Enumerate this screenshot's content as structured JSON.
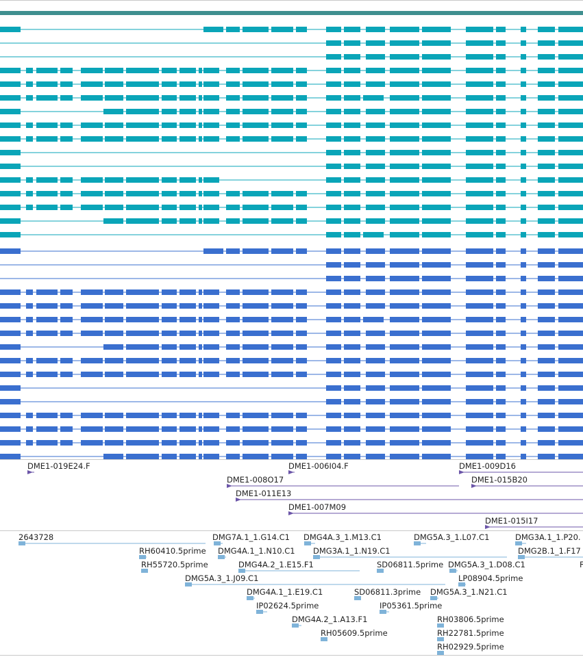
{
  "colors": {
    "teal": "#0aa5b8",
    "blue": "#3a6fcf",
    "purple": "#6b55a8",
    "lightblue": "#7fb3d9",
    "header": "#3f8f8f"
  },
  "tracks": {
    "transcripts": {
      "name": "gene-models",
      "teal_rows": 16,
      "blue_rows": 16
    },
    "clones": {
      "name": "cdna-clones",
      "items": [
        {
          "id": "c1",
          "label": "DME1-019E24.F"
        },
        {
          "id": "c2",
          "label": "DME1-006I04.F"
        },
        {
          "id": "c3",
          "label": "DME1-009D16"
        },
        {
          "id": "c4",
          "label": "DME1-008O17"
        },
        {
          "id": "c5",
          "label": "DME1-015B20"
        },
        {
          "id": "c6",
          "label": "DME1-011E13"
        },
        {
          "id": "c7",
          "label": "DME1-007M09"
        },
        {
          "id": "c8",
          "label": "DME1-015I17"
        }
      ]
    },
    "ests": {
      "name": "est-alignments",
      "items": [
        {
          "id": "e1",
          "label": "2643728"
        },
        {
          "id": "e2",
          "label": "DMG7A.1_1.G14.C1"
        },
        {
          "id": "e3",
          "label": "DMG4A.3_1.M13.C1"
        },
        {
          "id": "e4",
          "label": "DMG5A.3_1.L07.C1"
        },
        {
          "id": "e5",
          "label": "DMG3A.1_1.P20."
        },
        {
          "id": "e6",
          "label": "RH60410.5prime"
        },
        {
          "id": "e7",
          "label": "DMG4A.1_1.N10.C1"
        },
        {
          "id": "e8",
          "label": "DMG3A.1_1.N19.C1"
        },
        {
          "id": "e9",
          "label": "DMG2B.1_1.F17"
        },
        {
          "id": "e10",
          "label": "RH55720.5prime"
        },
        {
          "id": "e11",
          "label": "DMG4A.2_1.E15.F1"
        },
        {
          "id": "e12",
          "label": "SD06811.5prime"
        },
        {
          "id": "e13",
          "label": "DMG5A.3_1.D08.C1"
        },
        {
          "id": "e14",
          "label": "F"
        },
        {
          "id": "e15",
          "label": "DMG5A.3_1.J09.C1"
        },
        {
          "id": "e16",
          "label": "LP08904.5prime"
        },
        {
          "id": "e17",
          "label": "DMG4A.1_1.E19.C1"
        },
        {
          "id": "e18",
          "label": "SD06811.3prime"
        },
        {
          "id": "e19",
          "label": "DMG5A.3_1.N21.C1"
        },
        {
          "id": "e20",
          "label": "IP02624.5prime"
        },
        {
          "id": "e21",
          "label": "IP05361.5prime"
        },
        {
          "id": "e22",
          "label": "DMG4A.2_1.A13.F1"
        },
        {
          "id": "e23",
          "label": "RH03806.5prime"
        },
        {
          "id": "e24",
          "label": "RH05609.5prime"
        },
        {
          "id": "e25",
          "label": "RH22781.5prime"
        },
        {
          "id": "e26",
          "label": "RH02929.5prime"
        }
      ]
    }
  }
}
